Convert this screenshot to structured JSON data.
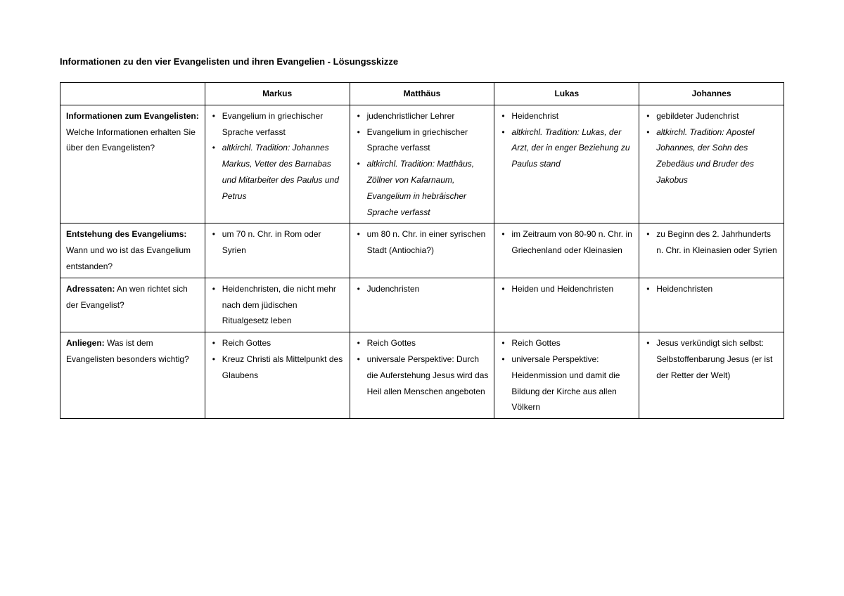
{
  "title": "Informationen zu den vier Evangelisten und ihren Evangelien - Lösungsskizze",
  "columns": [
    "",
    "Markus",
    "Matthäus",
    "Lukas",
    "Johannes"
  ],
  "rows": [
    {
      "label_bold": "Informationen zum Evangelisten:",
      "label_rest": " Welche Informationen erhalten Sie über den Evangelisten?",
      "cells": {
        "markus": [
          {
            "text": "Evangelium in griechischer Sprache verfasst",
            "italic": false
          },
          {
            "text": "altkirchl. Tradition: Johannes Markus, Vetter des Barnabas und Mitarbeiter des Paulus und Petrus",
            "italic": true
          }
        ],
        "matthaeus": [
          {
            "text": "judenchristlicher Lehrer",
            "italic": false
          },
          {
            "text": "Evangelium in griechischer Sprache verfasst",
            "italic": false
          },
          {
            "text": "altkirchl. Tradition: Matthäus, Zöllner von Kafarnaum, Evangelium in hebräischer Sprache verfasst",
            "italic": true
          }
        ],
        "lukas": [
          {
            "text": "Heidenchrist",
            "italic": false
          },
          {
            "text": "altkirchl. Tradition: Lukas, der Arzt, der in enger Beziehung zu Paulus stand",
            "italic": true
          }
        ],
        "johannes": [
          {
            "text": "gebildeter Judenchrist",
            "italic": false
          },
          {
            "text": "altkirchl. Tradition: Apostel Johannes, der Sohn des Zebedäus und Bruder des Jakobus",
            "italic": true
          }
        ]
      }
    },
    {
      "label_bold": "Entstehung des Evangeliums:",
      "label_rest": " Wann und wo ist das Evangelium entstanden?",
      "cells": {
        "markus": [
          {
            "text": "um 70 n. Chr. in Rom oder Syrien",
            "italic": false
          }
        ],
        "matthaeus": [
          {
            "text": "um 80 n. Chr. in einer syrischen Stadt (Antiochia?)",
            "italic": false
          }
        ],
        "lukas": [
          {
            "text": "im Zeitraum von 80-90 n. Chr. in Griechenland oder Kleinasien",
            "italic": false
          }
        ],
        "johannes": [
          {
            "text": "zu Beginn des 2. Jahrhunderts n. Chr. in Kleinasien oder Syrien",
            "italic": false
          }
        ]
      }
    },
    {
      "label_bold": "Adressaten:",
      "label_rest": " An wen richtet sich der Evangelist?",
      "cells": {
        "markus": [
          {
            "text": "Heidenchristen, die nicht mehr nach dem jüdischen Ritualgesetz leben",
            "italic": false
          }
        ],
        "matthaeus": [
          {
            "text": "Judenchristen",
            "italic": false
          }
        ],
        "lukas": [
          {
            "text": "Heiden und Heidenchristen",
            "italic": false
          }
        ],
        "johannes": [
          {
            "text": "Heidenchristen",
            "italic": false
          }
        ]
      }
    },
    {
      "label_bold": "Anliegen:",
      "label_rest": " Was ist dem Evangelisten besonders wichtig?",
      "cells": {
        "markus": [
          {
            "text": "Reich Gottes",
            "italic": false
          },
          {
            "text": "Kreuz Christi als Mittelpunkt des Glaubens",
            "italic": false
          }
        ],
        "matthaeus": [
          {
            "text": "Reich Gottes",
            "italic": false
          },
          {
            "text": "universale Perspektive: Durch die Auferstehung Jesus wird das Heil allen Menschen angeboten",
            "italic": false
          }
        ],
        "lukas": [
          {
            "text": "Reich Gottes",
            "italic": false
          },
          {
            "text": "universale Perspektive: Heidenmission und damit die Bildung der Kirche aus allen Völkern",
            "italic": false
          }
        ],
        "johannes": [
          {
            "text": "Jesus verkündigt sich selbst: Selbstoffenbarung Jesus (er ist der Retter der Welt)",
            "italic": false
          }
        ]
      }
    }
  ]
}
